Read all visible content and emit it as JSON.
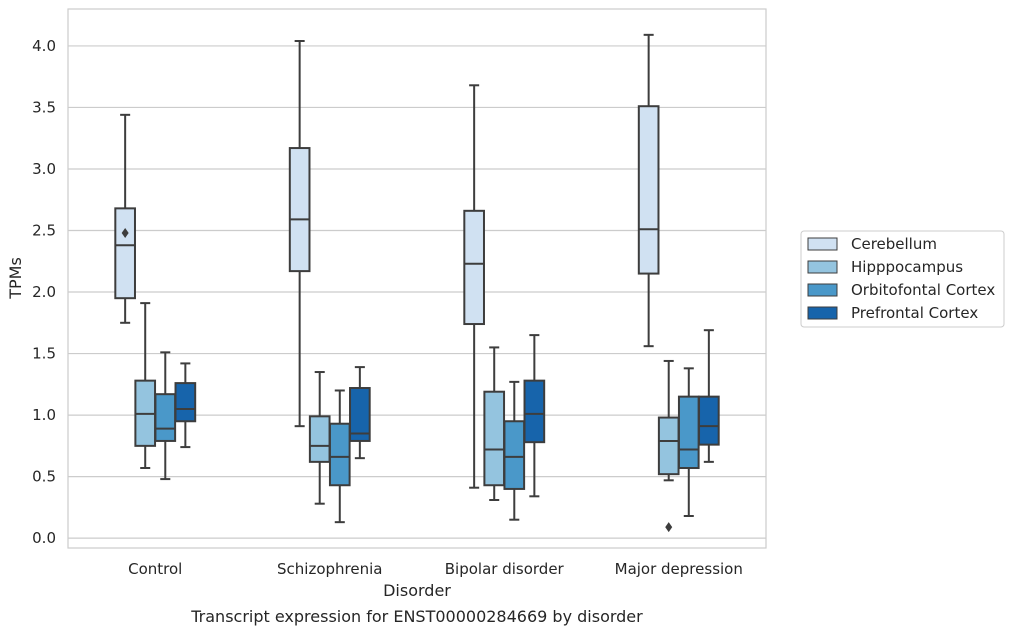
{
  "chart_data": {
    "type": "box",
    "caption": "Transcript expression for ENST00000284669 by disorder",
    "xlabel": "Disorder",
    "ylabel": "TPMs",
    "ylim": [
      -0.08,
      4.3
    ],
    "yticks": [
      "0.0",
      "0.5",
      "1.0",
      "1.5",
      "2.0",
      "2.5",
      "3.0",
      "3.5",
      "4.0"
    ],
    "grid": "horizontal",
    "legend_position": "right",
    "categories": [
      "Control",
      "Schizophrenia",
      "Bipolar disorder",
      "Major depression"
    ],
    "series": [
      {
        "name": "Cerebellum",
        "color": "#d0e1f2",
        "boxes": [
          {
            "whislo": 1.75,
            "q1": 1.95,
            "med": 2.38,
            "q3": 2.68,
            "whishi": 3.44,
            "fliers": [
              2.48
            ]
          },
          {
            "whislo": 0.91,
            "q1": 2.17,
            "med": 2.59,
            "q3": 3.17,
            "whishi": 4.04,
            "fliers": []
          },
          {
            "whislo": 0.41,
            "q1": 1.74,
            "med": 2.23,
            "q3": 2.66,
            "whishi": 3.68,
            "fliers": []
          },
          {
            "whislo": 1.56,
            "q1": 2.15,
            "med": 2.51,
            "q3": 3.51,
            "whishi": 4.09,
            "fliers": []
          }
        ]
      },
      {
        "name": "Hipppocampus",
        "color": "#94c4df",
        "boxes": [
          {
            "whislo": 0.57,
            "q1": 0.75,
            "med": 1.01,
            "q3": 1.28,
            "whishi": 1.91,
            "fliers": []
          },
          {
            "whislo": 0.28,
            "q1": 0.62,
            "med": 0.75,
            "q3": 0.99,
            "whishi": 1.35,
            "fliers": []
          },
          {
            "whislo": 0.31,
            "q1": 0.43,
            "med": 0.72,
            "q3": 1.19,
            "whishi": 1.55,
            "fliers": []
          },
          {
            "whislo": 0.47,
            "q1": 0.52,
            "med": 0.79,
            "q3": 0.98,
            "whishi": 1.44,
            "fliers": [
              0.09
            ]
          }
        ]
      },
      {
        "name": "Orbitofontal Cortex",
        "color": "#4a98c9",
        "boxes": [
          {
            "whislo": 0.48,
            "q1": 0.79,
            "med": 0.89,
            "q3": 1.17,
            "whishi": 1.51,
            "fliers": []
          },
          {
            "whislo": 0.13,
            "q1": 0.43,
            "med": 0.66,
            "q3": 0.93,
            "whishi": 1.2,
            "fliers": []
          },
          {
            "whislo": 0.15,
            "q1": 0.4,
            "med": 0.66,
            "q3": 0.95,
            "whishi": 1.27,
            "fliers": []
          },
          {
            "whislo": 0.18,
            "q1": 0.57,
            "med": 0.72,
            "q3": 1.15,
            "whishi": 1.38,
            "fliers": []
          }
        ]
      },
      {
        "name": "Prefrontal Cortex",
        "color": "#1764ab",
        "boxes": [
          {
            "whislo": 0.74,
            "q1": 0.95,
            "med": 1.05,
            "q3": 1.26,
            "whishi": 1.42,
            "fliers": []
          },
          {
            "whislo": 0.65,
            "q1": 0.79,
            "med": 0.85,
            "q3": 1.22,
            "whishi": 1.39,
            "fliers": []
          },
          {
            "whislo": 0.34,
            "q1": 0.78,
            "med": 1.01,
            "q3": 1.28,
            "whishi": 1.65,
            "fliers": []
          },
          {
            "whislo": 0.62,
            "q1": 0.76,
            "med": 0.91,
            "q3": 1.15,
            "whishi": 1.69,
            "fliers": []
          }
        ]
      }
    ]
  }
}
